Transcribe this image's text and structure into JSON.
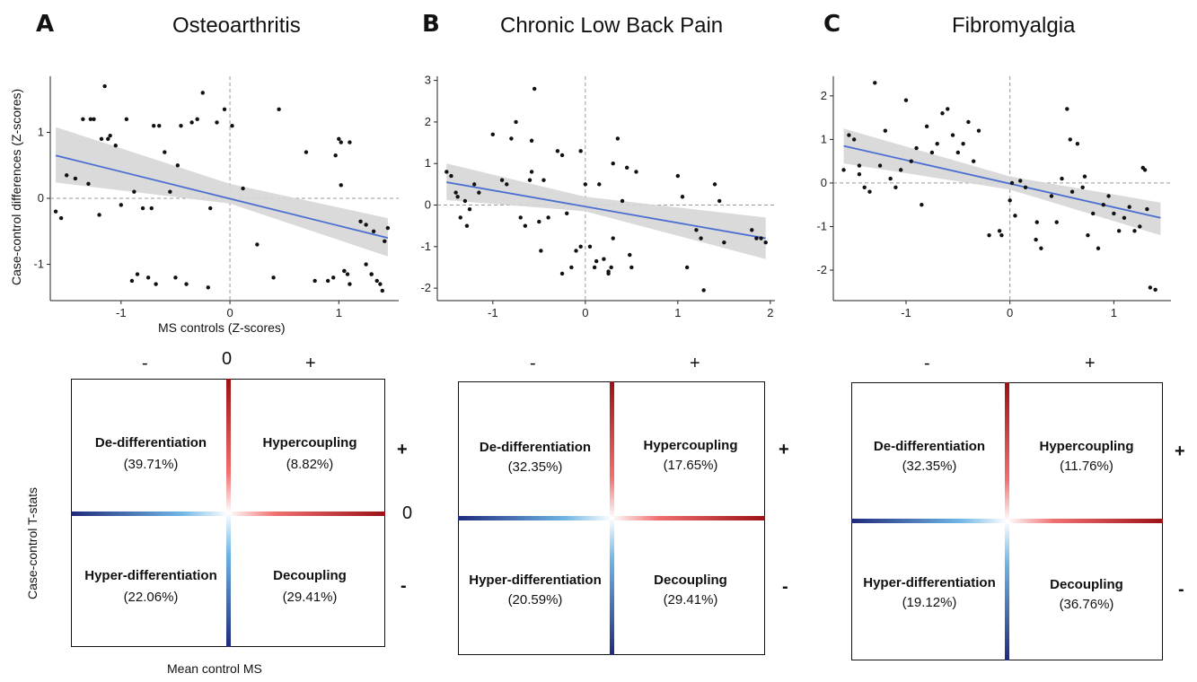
{
  "panels": [
    {
      "letter": "A",
      "title": "Osteoarthritis",
      "ylabel": "Case-control differences (Z-scores)",
      "xlabel": "MS controls (Z-scores)",
      "sign_minus": "-",
      "sign_zero": "0",
      "sign_plus": "+",
      "row_plus": "+",
      "row_zero": "0",
      "row_minus": "-",
      "quadrant_ylabel": "Case-control T-stats",
      "quadrant_xlabel": "Mean control MS",
      "quadrants": {
        "top_left": {
          "label": "De-differentiation",
          "pct": "(39.71%)"
        },
        "top_right": {
          "label": "Hypercoupling",
          "pct": "(8.82%)"
        },
        "bottom_left": {
          "label": "Hyper-differentiation",
          "pct": "(22.06%)"
        },
        "bottom_right": {
          "label": "Decoupling",
          "pct": "(29.41%)"
        }
      }
    },
    {
      "letter": "B",
      "title": "Chronic Low Back Pain",
      "sign_minus": "-",
      "sign_plus": "+",
      "row_plus": "+",
      "row_minus": "-",
      "quadrants": {
        "top_left": {
          "label": "De-differentiation",
          "pct": "(32.35%)"
        },
        "top_right": {
          "label": "Hypercoupling",
          "pct": "(17.65%)"
        },
        "bottom_left": {
          "label": "Hyper-differentiation",
          "pct": "(20.59%)"
        },
        "bottom_right": {
          "label": "Decoupling",
          "pct": "(29.41%)"
        }
      }
    },
    {
      "letter": "C",
      "title": "Fibromyalgia",
      "sign_minus": "-",
      "sign_plus": "+",
      "row_plus": "+",
      "row_minus": "-",
      "quadrants": {
        "top_left": {
          "label": "De-differentiation",
          "pct": "(32.35%)"
        },
        "top_right": {
          "label": "Hypercoupling",
          "pct": "(11.76%)"
        },
        "bottom_left": {
          "label": "Hyper-differentiation",
          "pct": "(19.12%)"
        },
        "bottom_right": {
          "label": "Decoupling",
          "pct": "(36.76%)"
        }
      }
    }
  ],
  "colors": {
    "fit_line": "#4a6fd1",
    "ci_band": "#d6d6d6",
    "points": "#111111",
    "ref_line": "#999999",
    "neg_dark": "#1f2a7a",
    "neg_light": "#6fb6e6",
    "pos_light": "#f07070",
    "pos_dark": "#9b1116"
  },
  "chart_data": [
    {
      "type": "scatter",
      "title": "Osteoarthritis",
      "xlabel": "MS controls (Z-scores)",
      "ylabel": "Case-control differences (Z-scores)",
      "xlim": [
        -1.65,
        1.55
      ],
      "ylim": [
        -1.55,
        1.85
      ],
      "xticks": [
        -1,
        0,
        1
      ],
      "yticks": [
        -1,
        0,
        1
      ],
      "fit": {
        "x": [
          -1.6,
          1.45
        ],
        "y": [
          0.65,
          -0.6
        ]
      },
      "ci": {
        "x": [
          -1.6,
          0,
          1.45
        ],
        "upper": [
          1.08,
          0.22,
          -0.3
        ],
        "lower": [
          0.24,
          -0.08,
          -0.88
        ]
      },
      "points": {
        "x": [
          -1.6,
          -1.55,
          -1.5,
          -1.42,
          -1.35,
          -1.3,
          -1.28,
          -1.25,
          -1.2,
          -1.18,
          -1.15,
          -1.12,
          -1.05,
          -1.0,
          -0.95,
          -0.9,
          -0.88,
          -0.85,
          -0.8,
          -0.75,
          -0.72,
          -0.7,
          -0.68,
          -0.65,
          -0.6,
          -0.55,
          -0.5,
          -0.48,
          -0.45,
          -0.4,
          -0.35,
          -0.3,
          -0.25,
          -0.2,
          -0.18,
          -0.12,
          -0.05,
          0.02,
          0.12,
          0.25,
          0.45,
          0.7,
          0.78,
          0.9,
          1.0,
          1.02,
          1.05,
          1.08,
          1.1,
          1.2,
          1.25,
          1.3,
          1.32,
          1.35,
          1.38,
          1.4,
          1.42,
          1.45,
          1.02,
          1.1,
          1.25,
          1.3,
          0.4,
          1.05,
          -1.1,
          0.97,
          0.95
        ],
        "y": [
          -0.2,
          -0.3,
          0.35,
          0.3,
          1.2,
          0.22,
          1.2,
          1.2,
          -0.25,
          0.9,
          1.7,
          0.9,
          0.8,
          -0.1,
          1.2,
          -1.25,
          0.1,
          -1.15,
          -0.15,
          -1.2,
          -0.15,
          1.1,
          -1.3,
          1.1,
          0.7,
          0.1,
          -1.2,
          0.5,
          1.1,
          -1.3,
          1.15,
          1.2,
          1.6,
          -1.35,
          -0.15,
          1.15,
          1.35,
          1.1,
          0.15,
          -0.7,
          1.35,
          0.7,
          -1.25,
          -1.25,
          0.9,
          0.2,
          -1.1,
          -1.15,
          -1.3,
          -0.35,
          -0.4,
          -1.15,
          -0.5,
          -1.25,
          -1.3,
          -1.4,
          -0.65,
          -0.45,
          0.85,
          0.85,
          -1.0,
          -1.15,
          -1.2,
          -1.1,
          0.95,
          0.65,
          -1.2
        ]
      }
    },
    {
      "type": "scatter",
      "title": "Chronic Low Back Pain",
      "xlim": [
        -1.6,
        2.05
      ],
      "ylim": [
        -2.3,
        3.1
      ],
      "xticks": [
        -1,
        0,
        1,
        2
      ],
      "yticks": [
        -2,
        -1,
        0,
        1,
        2,
        3
      ],
      "fit": {
        "x": [
          -1.5,
          1.95
        ],
        "y": [
          0.55,
          -0.8
        ]
      },
      "ci": {
        "x": [
          -1.5,
          0,
          1.95
        ],
        "upper": [
          1.0,
          0.2,
          -0.3
        ],
        "lower": [
          0.12,
          -0.15,
          -1.3
        ]
      },
      "points": {
        "x": [
          -1.5,
          -1.45,
          -1.4,
          -1.38,
          -1.35,
          -1.3,
          -1.28,
          -1.25,
          -1.2,
          -1.15,
          -1.0,
          -0.9,
          -0.85,
          -0.8,
          -0.75,
          -0.7,
          -0.65,
          -0.6,
          -0.58,
          -0.55,
          -0.5,
          -0.48,
          -0.45,
          -0.4,
          -0.3,
          -0.25,
          -0.2,
          -0.15,
          -0.1,
          -0.05,
          0.0,
          0.05,
          0.1,
          0.15,
          0.2,
          0.25,
          0.3,
          0.35,
          0.4,
          0.45,
          0.5,
          0.55,
          1.0,
          1.05,
          1.1,
          1.2,
          1.25,
          1.4,
          1.45,
          1.5,
          1.8,
          1.85,
          1.9,
          1.95,
          0.28,
          -0.05,
          0.3,
          0.48,
          -0.58,
          -0.25,
          0.12,
          1.28,
          0.25
        ],
        "y": [
          0.8,
          0.7,
          0.3,
          0.2,
          -0.3,
          0.1,
          -0.5,
          -0.1,
          0.5,
          0.3,
          1.7,
          0.6,
          0.5,
          1.6,
          2.0,
          -0.3,
          -0.5,
          0.6,
          0.8,
          2.8,
          -0.4,
          -1.1,
          0.6,
          -0.3,
          1.3,
          1.2,
          -0.2,
          -1.5,
          -1.1,
          1.3,
          0.5,
          -1.0,
          -1.5,
          0.5,
          -1.3,
          -1.6,
          1.0,
          1.6,
          0.1,
          0.9,
          -1.5,
          0.8,
          0.7,
          0.2,
          -1.5,
          -0.6,
          -0.8,
          0.5,
          0.1,
          -0.9,
          -0.6,
          -0.8,
          -0.8,
          -0.9,
          -1.5,
          -1.0,
          -0.8,
          -1.2,
          1.55,
          -1.65,
          -1.35,
          -2.05,
          -1.65
        ]
      }
    },
    {
      "type": "scatter",
      "title": "Fibromyalgia",
      "xlim": [
        -1.7,
        1.55
      ],
      "ylim": [
        -2.7,
        2.45
      ],
      "xticks": [
        -1,
        0,
        1
      ],
      "yticks": [
        -2,
        -1,
        0,
        1,
        2
      ],
      "fit": {
        "x": [
          -1.6,
          1.45
        ],
        "y": [
          0.85,
          -0.8
        ]
      },
      "ci": {
        "x": [
          -1.6,
          0,
          1.45
        ],
        "upper": [
          1.25,
          0.15,
          -0.45
        ],
        "lower": [
          0.45,
          -0.15,
          -1.2
        ]
      },
      "points": {
        "x": [
          -1.6,
          -1.55,
          -1.5,
          -1.45,
          -1.4,
          -1.35,
          -1.3,
          -1.25,
          -1.2,
          -1.15,
          -1.1,
          -1.05,
          -1.0,
          -0.95,
          -0.9,
          -0.85,
          -0.8,
          -0.75,
          -0.7,
          -0.65,
          -0.6,
          -0.55,
          -0.5,
          -0.45,
          -0.4,
          -0.35,
          -0.3,
          -0.2,
          -0.1,
          0.0,
          0.02,
          0.05,
          0.1,
          0.15,
          0.25,
          0.3,
          0.4,
          0.45,
          0.5,
          0.55,
          0.6,
          0.65,
          0.7,
          0.75,
          0.8,
          0.85,
          0.9,
          0.95,
          1.0,
          1.05,
          1.1,
          1.15,
          1.2,
          1.25,
          1.3,
          1.32,
          1.35,
          1.4,
          0.72,
          1.28,
          -1.45,
          -0.08,
          0.58,
          0.26
        ],
        "y": [
          0.3,
          1.1,
          1.0,
          0.4,
          -0.1,
          -0.2,
          2.3,
          0.4,
          1.2,
          0.1,
          -0.1,
          0.3,
          1.9,
          0.5,
          0.8,
          -0.5,
          1.3,
          0.7,
          0.9,
          1.6,
          1.7,
          1.1,
          0.7,
          0.9,
          1.4,
          0.5,
          1.2,
          -1.2,
          -1.1,
          -0.4,
          0.0,
          -0.75,
          0.05,
          -0.1,
          -1.3,
          -1.5,
          -0.3,
          -0.9,
          0.1,
          1.7,
          -0.2,
          0.9,
          -0.1,
          -1.2,
          -0.7,
          -1.5,
          -0.5,
          -0.3,
          -0.7,
          -1.1,
          -0.8,
          -0.55,
          -1.1,
          -1.0,
          0.3,
          -0.6,
          -2.4,
          -2.45,
          0.15,
          0.35,
          0.2,
          -1.2,
          1.0,
          -0.9
        ]
      }
    }
  ]
}
